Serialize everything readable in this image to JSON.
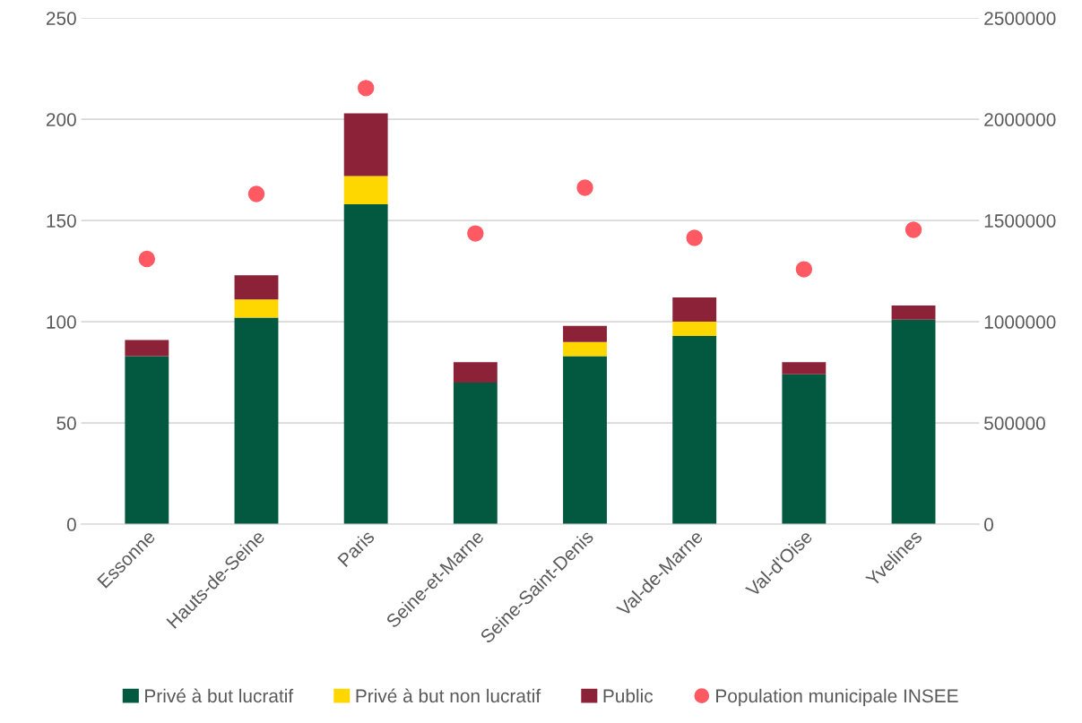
{
  "chart_data": {
    "type": "bar",
    "stacked": true,
    "categories": [
      "Essonne",
      "Hauts-de-Seine",
      "Paris",
      "Seine-et-Marne",
      "Seine-Saint-Denis",
      "Val-de-Marne",
      "Val-d'Oise",
      "Yvelines"
    ],
    "series": [
      {
        "name": "Privé à but lucratif",
        "color": "#025940",
        "values": [
          83,
          102,
          158,
          70,
          83,
          93,
          74,
          101
        ]
      },
      {
        "name": "Privé à but non lucratif",
        "color": "#ffd700",
        "values": [
          0,
          9,
          14,
          0,
          7,
          7,
          0,
          0
        ]
      },
      {
        "name": "Public",
        "color": "#8b2238",
        "values": [
          8,
          12,
          31,
          10,
          8,
          12,
          6,
          7
        ]
      },
      {
        "name": "Population municipale INSEE",
        "type": "scatter",
        "axis": "y2",
        "marker": "circle",
        "color": "#ff5a64",
        "values": [
          1310000,
          1631000,
          2154000,
          1436000,
          1662000,
          1414000,
          1259000,
          1454000
        ]
      }
    ],
    "ylim": [
      0,
      250
    ],
    "yticks": [
      0,
      50,
      100,
      150,
      200,
      250
    ],
    "y2lim": [
      0,
      2500000
    ],
    "y2ticks": [
      0,
      500000,
      1000000,
      1500000,
      2000000,
      2500000
    ],
    "grid": "y",
    "legend": "bottom"
  }
}
